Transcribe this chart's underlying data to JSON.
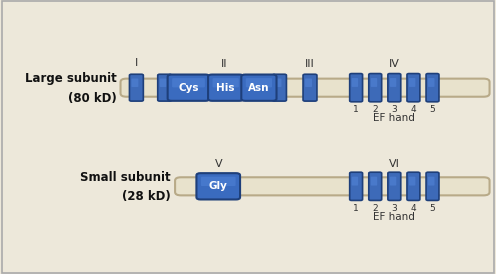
{
  "bg_color": "#ede8da",
  "tube_color": "#e8e2cc",
  "tube_edge_color": "#b8aa88",
  "blue_dark": "#1e3f7a",
  "blue_mid": "#3a6bbf",
  "blue_light": "#5588dd",
  "ring_face": "#3d6ab8",
  "ring_edge": "#1e3f7a",
  "text_color": "#333333",
  "large_label_line1": "Large subunit",
  "large_label_line2": "(80 kD)",
  "small_label_line1": "Small subunit",
  "small_label_line2": "(28 kD)",
  "ef_hand_label": "EF hand",
  "border_color": "#aaaaaa",
  "figsize": [
    4.96,
    2.74
  ],
  "dpi": 100,
  "xlim": [
    0,
    10
  ],
  "ylim": [
    0,
    10
  ]
}
